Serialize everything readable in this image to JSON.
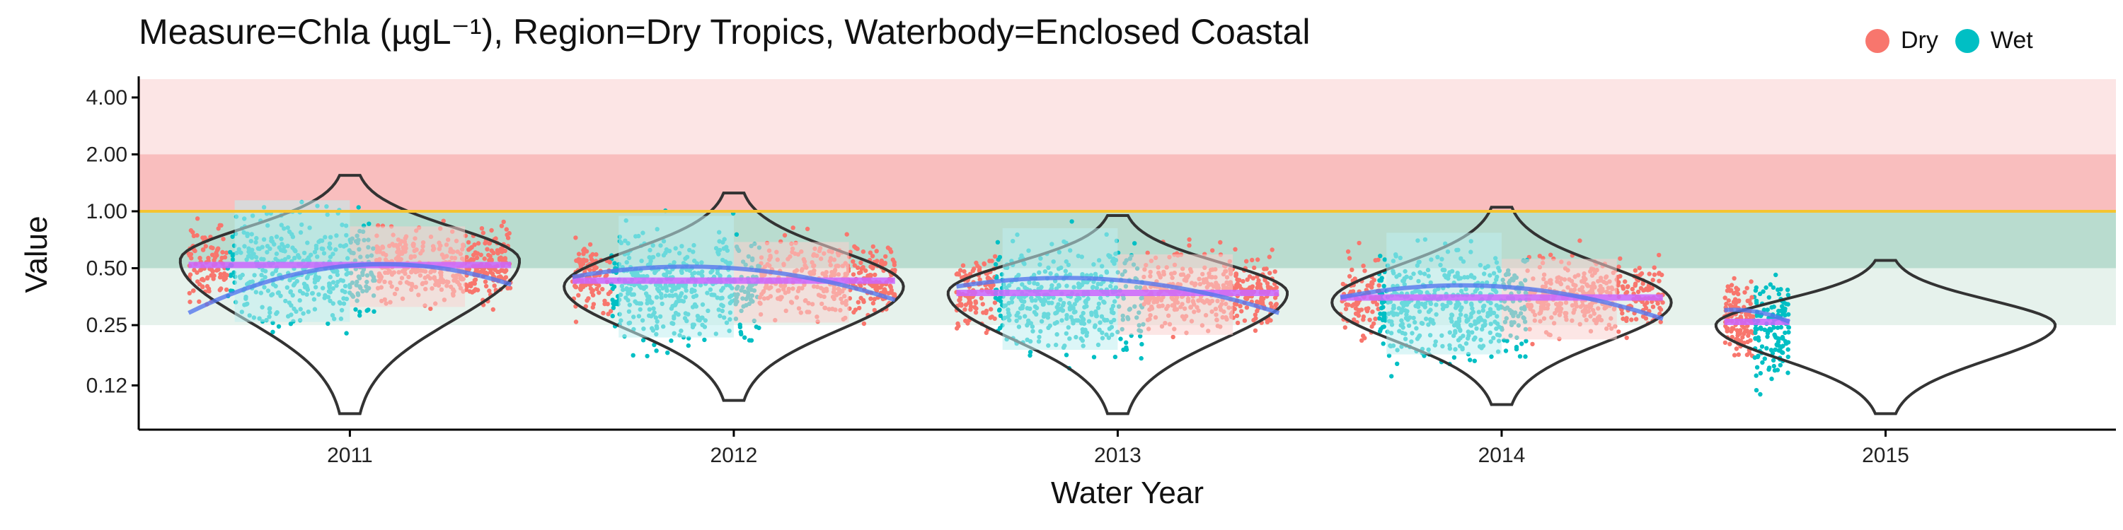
{
  "chart_data": {
    "type": "scatter",
    "title": "Measure=Chla (µgL⁻¹), Region=Dry Tropics, Waterbody=Enclosed Coastal",
    "xlabel": "Water Year",
    "ylabel": "Value",
    "y_scale": "log",
    "ylim": [
      0.07,
      5.0
    ],
    "y_ticks": [
      0.12,
      0.25,
      0.5,
      1.0,
      2.0,
      4.0
    ],
    "y_tick_labels": [
      "0.12",
      "0.25",
      "0.50",
      "1.00",
      "2.00",
      "4.00"
    ],
    "x_ticks": [
      2011,
      2012,
      2013,
      2014,
      2015
    ],
    "x_tick_labels": [
      "2011",
      "2012",
      "2013",
      "2014",
      "2015"
    ],
    "xlim": [
      2010.45,
      2015.6
    ],
    "grid": false,
    "legend": {
      "position": "top-right",
      "items": [
        {
          "label": "Dry",
          "color": "#F8766D"
        },
        {
          "label": "Wet",
          "color": "#00BFC4"
        }
      ]
    },
    "reference_line": {
      "value": 1.0,
      "color": "#F4C430"
    },
    "threshold_bands": [
      {
        "from": 2.0,
        "to": 5.0,
        "color": "#FCE5E5"
      },
      {
        "from": 1.0,
        "to": 2.0,
        "color": "#F9BEBE"
      },
      {
        "from": 0.5,
        "to": 1.0,
        "color": "#B9DCCF"
      },
      {
        "from": 0.25,
        "to": 0.5,
        "color": "#E6F2EC"
      }
    ],
    "series": [
      {
        "name": "Dry",
        "color": "#F8766D"
      },
      {
        "name": "Wet",
        "color": "#00BFC4"
      }
    ],
    "years": [
      {
        "year": 2011,
        "median": 0.52,
        "violin_min": 0.085,
        "violin_max": 1.55,
        "violin_mode": 0.55,
        "trend_start": 0.29,
        "trend_end": 0.41
      },
      {
        "year": 2012,
        "median": 0.43,
        "violin_min": 0.1,
        "violin_max": 1.25,
        "violin_mode": 0.4,
        "trend_start": 0.45,
        "trend_end": 0.34
      },
      {
        "year": 2013,
        "median": 0.37,
        "violin_min": 0.085,
        "violin_max": 0.95,
        "violin_mode": 0.37,
        "trend_start": 0.4,
        "trend_end": 0.29
      },
      {
        "year": 2014,
        "median": 0.35,
        "violin_min": 0.095,
        "violin_max": 1.05,
        "violin_mode": 0.33,
        "trend_start": 0.35,
        "trend_end": 0.27
      },
      {
        "year": 2015,
        "median": 0.26,
        "violin_min": 0.085,
        "violin_max": 0.55,
        "violin_mode": 0.25,
        "trend_start": 0.3,
        "trend_end": 0.26
      }
    ]
  }
}
